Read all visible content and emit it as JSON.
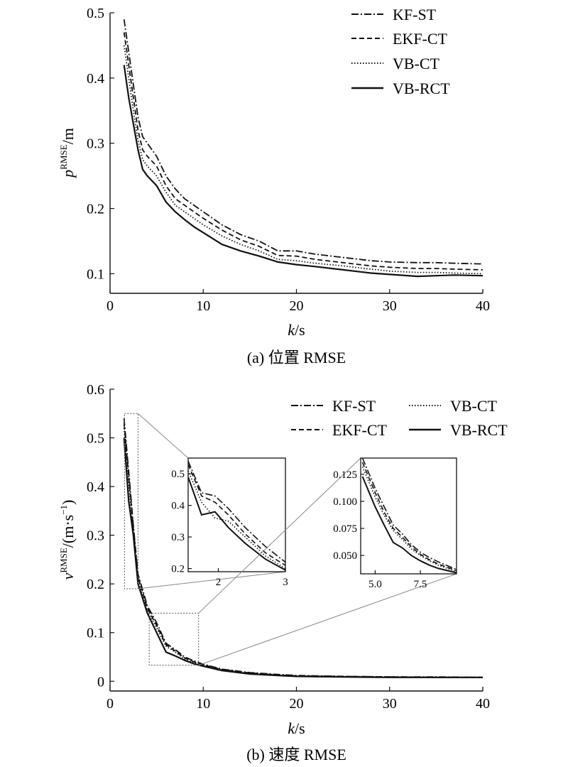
{
  "chart_data": [
    {
      "type": "line",
      "panel_caption": "(a) 位置 RMSE",
      "ylabel_main": "p",
      "ylabel_sup": "RMSE",
      "ylabel_unit": "/m",
      "xlabel_main": "k",
      "xlabel_unit": "/s",
      "xlim": [
        0,
        40
      ],
      "ylim": [
        0.07,
        0.5
      ],
      "xticks": [
        0,
        10,
        20,
        30,
        40
      ],
      "yticks": [
        0.1,
        0.2,
        0.3,
        0.4,
        0.5
      ],
      "x": [
        1.5,
        2,
        2.5,
        3,
        3.5,
        4,
        5,
        6,
        7,
        8,
        9,
        10,
        12,
        14,
        16,
        18,
        20,
        22,
        25,
        28,
        30,
        33,
        35,
        37,
        40
      ],
      "legend_position": "top-right",
      "series": [
        {
          "name": "KF-ST",
          "style": "dashdot",
          "values": [
            0.49,
            0.44,
            0.39,
            0.34,
            0.31,
            0.3,
            0.28,
            0.25,
            0.23,
            0.215,
            0.205,
            0.195,
            0.175,
            0.16,
            0.15,
            0.135,
            0.135,
            0.13,
            0.125,
            0.12,
            0.118,
            0.117,
            0.117,
            0.116,
            0.115
          ]
        },
        {
          "name": "EKF-CT",
          "style": "dashed",
          "values": [
            0.47,
            0.42,
            0.37,
            0.32,
            0.29,
            0.28,
            0.265,
            0.235,
            0.215,
            0.205,
            0.195,
            0.185,
            0.167,
            0.152,
            0.142,
            0.128,
            0.127,
            0.122,
            0.117,
            0.112,
            0.11,
            0.108,
            0.108,
            0.107,
            0.106
          ]
        },
        {
          "name": "VB-CT",
          "style": "dotted",
          "values": [
            0.45,
            0.4,
            0.35,
            0.305,
            0.275,
            0.265,
            0.25,
            0.225,
            0.205,
            0.195,
            0.185,
            0.175,
            0.158,
            0.145,
            0.135,
            0.122,
            0.12,
            0.116,
            0.112,
            0.107,
            0.104,
            0.102,
            0.102,
            0.101,
            0.1
          ]
        },
        {
          "name": "VB-RCT",
          "style": "solid",
          "values": [
            0.42,
            0.37,
            0.33,
            0.29,
            0.26,
            0.25,
            0.235,
            0.21,
            0.195,
            0.183,
            0.172,
            0.163,
            0.145,
            0.135,
            0.127,
            0.118,
            0.114,
            0.111,
            0.106,
            0.101,
            0.099,
            0.096,
            0.097,
            0.098,
            0.097
          ]
        }
      ]
    },
    {
      "type": "line",
      "panel_caption": "(b) 速度 RMSE",
      "ylabel_main": "v",
      "ylabel_sup": "RMSE",
      "ylabel_unit": "/(m·s",
      "ylabel_exp": "−1",
      "ylabel_close": ")",
      "xlabel_main": "k",
      "xlabel_unit": "/s",
      "xlim": [
        0,
        40
      ],
      "ylim": [
        -0.02,
        0.6
      ],
      "xticks": [
        0,
        10,
        20,
        30,
        40
      ],
      "yticks": [
        0,
        0.1,
        0.2,
        0.3,
        0.4,
        0.5,
        0.6
      ],
      "x": [
        1.5,
        2,
        2.5,
        3,
        4,
        5,
        6,
        7,
        8,
        9,
        10,
        12,
        15,
        18,
        20,
        25,
        30,
        35,
        40
      ],
      "legend_position": "top-right",
      "series": [
        {
          "name": "KF-ST",
          "style": "dashdot",
          "values": [
            0.54,
            0.43,
            0.32,
            0.22,
            0.155,
            0.12,
            0.078,
            0.065,
            0.05,
            0.042,
            0.035,
            0.025,
            0.018,
            0.014,
            0.012,
            0.01,
            0.009,
            0.009,
            0.008
          ]
        },
        {
          "name": "EKF-CT",
          "style": "dashed",
          "values": [
            0.53,
            0.42,
            0.315,
            0.215,
            0.15,
            0.115,
            0.075,
            0.062,
            0.048,
            0.04,
            0.034,
            0.024,
            0.017,
            0.013,
            0.011,
            0.01,
            0.009,
            0.008,
            0.008
          ]
        },
        {
          "name": "VB-CT",
          "style": "dotted",
          "values": [
            0.52,
            0.41,
            0.3,
            0.21,
            0.145,
            0.11,
            0.072,
            0.06,
            0.046,
            0.039,
            0.033,
            0.023,
            0.016,
            0.013,
            0.011,
            0.009,
            0.009,
            0.008,
            0.008
          ]
        },
        {
          "name": "VB-RCT",
          "style": "solid",
          "values": [
            0.5,
            0.37,
            0.3,
            0.2,
            0.14,
            0.1,
            0.06,
            0.052,
            0.043,
            0.036,
            0.031,
            0.022,
            0.015,
            0.012,
            0.01,
            0.009,
            0.008,
            0.008,
            0.008
          ]
        }
      ],
      "insets": [
        {
          "xlim": [
            1.55,
            3.0
          ],
          "ylim": [
            0.19,
            0.55
          ],
          "xticks": [
            2,
            3
          ],
          "yticks": [
            0.2,
            0.3,
            0.4,
            0.5
          ],
          "ytick_labels": [
            "0.2",
            "0.3",
            "0.4",
            "0.5"
          ],
          "x": [
            1.55,
            1.75,
            1.95,
            2.15,
            2.4,
            2.7,
            3.0
          ],
          "series": [
            {
              "style": "dashdot",
              "values": [
                0.54,
                0.44,
                0.43,
                0.39,
                0.33,
                0.27,
                0.22
              ]
            },
            {
              "style": "dashed",
              "values": [
                0.53,
                0.43,
                0.41,
                0.37,
                0.31,
                0.25,
                0.21
              ]
            },
            {
              "style": "dotted",
              "values": [
                0.51,
                0.41,
                0.36,
                0.35,
                0.3,
                0.24,
                0.2
              ]
            },
            {
              "style": "solid",
              "values": [
                0.49,
                0.37,
                0.38,
                0.33,
                0.28,
                0.23,
                0.195
              ]
            }
          ]
        },
        {
          "xlim": [
            4.2,
            9.5
          ],
          "ylim": [
            0.033,
            0.14
          ],
          "xticks": [
            5.0,
            7.5
          ],
          "yticks": [
            0.05,
            0.075,
            0.1,
            0.125
          ],
          "xtick_labels": [
            "5.0",
            "7.5"
          ],
          "ytick_labels": [
            "0.050",
            "0.075",
            "0.100",
            "0.125"
          ],
          "x": [
            4.3,
            5,
            5.5,
            6,
            6.5,
            7,
            7.5,
            8,
            8.5,
            9.5
          ],
          "series": [
            {
              "style": "dashdot",
              "values": [
                0.14,
                0.112,
                0.095,
                0.078,
                0.07,
                0.06,
                0.053,
                0.048,
                0.044,
                0.037
              ]
            },
            {
              "style": "dashed",
              "values": [
                0.136,
                0.108,
                0.09,
                0.075,
                0.067,
                0.058,
                0.051,
                0.046,
                0.042,
                0.036
              ]
            },
            {
              "style": "dotted",
              "values": [
                0.132,
                0.104,
                0.087,
                0.073,
                0.065,
                0.056,
                0.05,
                0.045,
                0.041,
                0.035
              ]
            },
            {
              "style": "solid",
              "values": [
                0.123,
                0.095,
                0.078,
                0.062,
                0.057,
                0.05,
                0.045,
                0.041,
                0.038,
                0.034
              ]
            }
          ]
        }
      ]
    }
  ]
}
